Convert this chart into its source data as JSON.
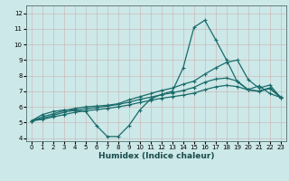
{
  "xlabel": "Humidex (Indice chaleur)",
  "xlim": [
    -0.5,
    23.5
  ],
  "ylim": [
    3.8,
    12.5
  ],
  "xticks": [
    0,
    1,
    2,
    3,
    4,
    5,
    6,
    7,
    8,
    9,
    10,
    11,
    12,
    13,
    14,
    15,
    16,
    17,
    18,
    19,
    20,
    21,
    22,
    23
  ],
  "yticks": [
    4,
    5,
    6,
    7,
    8,
    9,
    10,
    11,
    12
  ],
  "bg_color": "#cce8e8",
  "grid_color": "#b8d4d4",
  "line_color": "#1a6b6b",
  "line1_y": [
    5.1,
    5.5,
    5.7,
    5.8,
    5.8,
    5.7,
    4.8,
    4.1,
    4.1,
    4.8,
    5.8,
    6.5,
    6.8,
    7.0,
    8.5,
    11.1,
    11.55,
    10.3,
    9.0,
    7.6,
    7.1,
    7.35,
    6.85,
    6.6
  ],
  "line2_y": [
    5.1,
    5.35,
    5.55,
    5.75,
    5.9,
    6.0,
    6.05,
    6.1,
    6.2,
    6.45,
    6.65,
    6.85,
    7.05,
    7.2,
    7.45,
    7.65,
    8.1,
    8.5,
    8.85,
    9.0,
    7.75,
    7.2,
    7.4,
    6.6
  ],
  "line3_y": [
    5.1,
    5.25,
    5.45,
    5.65,
    5.78,
    5.88,
    5.95,
    6.05,
    6.15,
    6.3,
    6.48,
    6.62,
    6.78,
    6.9,
    7.05,
    7.25,
    7.58,
    7.78,
    7.85,
    7.65,
    7.1,
    6.98,
    7.18,
    6.58
  ],
  "line4_y": [
    5.1,
    5.2,
    5.35,
    5.5,
    5.65,
    5.75,
    5.82,
    5.9,
    6.0,
    6.12,
    6.28,
    6.42,
    6.55,
    6.65,
    6.75,
    6.88,
    7.1,
    7.28,
    7.38,
    7.3,
    7.08,
    7.02,
    7.22,
    6.62
  ]
}
